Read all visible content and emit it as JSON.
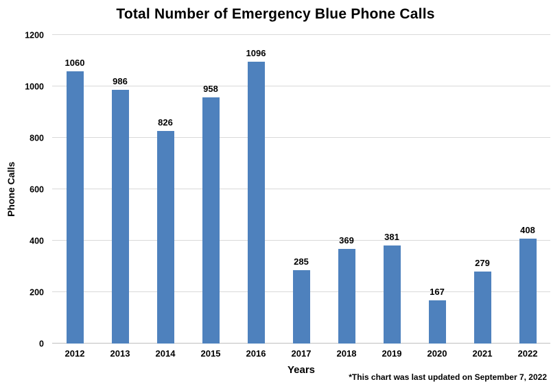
{
  "chart_data": {
    "type": "bar",
    "title": "Total Number of Emergency Blue Phone Calls",
    "categories": [
      "2012",
      "2013",
      "2014",
      "2015",
      "2016",
      "2017",
      "2018",
      "2019",
      "2020",
      "2021",
      "2022"
    ],
    "values": [
      1060,
      986,
      826,
      958,
      1096,
      285,
      369,
      381,
      167,
      279,
      408
    ],
    "xlabel": "Years",
    "ylabel": "Phone Calls",
    "ylim": [
      0,
      1200
    ],
    "yticks": [
      0,
      200,
      400,
      600,
      800,
      1000,
      1200
    ],
    "grid": "horizontal",
    "legend": "none",
    "data_labels": true,
    "bar_color": "#4e81bd",
    "gridline_color": "#d9d9d9",
    "axis_line_color": "#bfbfbf"
  },
  "footnote": "*This chart was last updated on September 7, 2022"
}
